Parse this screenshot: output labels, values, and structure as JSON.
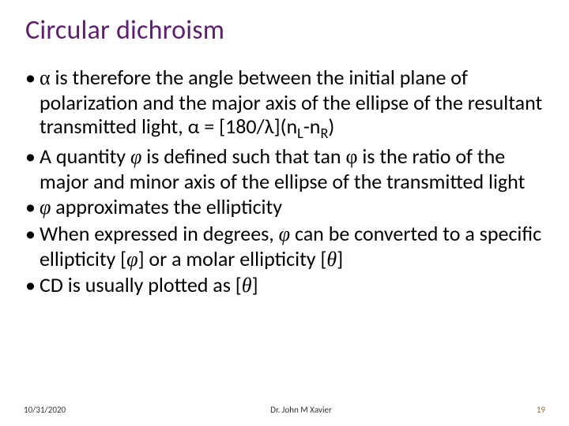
{
  "title": "Circular dichroism",
  "title_color": "#5b1f6b",
  "title_fontsize": 34,
  "body_fontsize": 26,
  "body_color": "#000000",
  "background_color": "#ffffff",
  "bullets": [
    {
      "html": "<span class='greek'>α</span> is therefore the angle between the initial plane of polarization and the major axis of the ellipse of the resultant transmitted light, α = [180/λ](n<sub>L</sub>-n<sub>R</sub>)"
    },
    {
      "html": "A quantity <span class='greek italic'>φ</span> is defined such that tan <span class='greek'>φ</span> is the ratio of the major and minor axis of the ellipse of the transmitted light"
    },
    {
      "html": "<span class='greek italic'>φ</span>  approximates the ellipticity"
    },
    {
      "html": "When expressed in degrees, <span class='greek italic'>φ</span>  can be converted to a specific ellipticity [<span class='greek italic'>φ</span>] or a molar ellipticity [<span class='greek italic'>θ</span>]"
    },
    {
      "html": "CD is usually plotted as [<span class='greek italic'>θ</span>]"
    }
  ],
  "footer": {
    "date": "10/31/2020",
    "author": "Dr. John M Xavier",
    "page": "19",
    "page_color": "#8a6d3b",
    "footer_fontsize": 11
  }
}
